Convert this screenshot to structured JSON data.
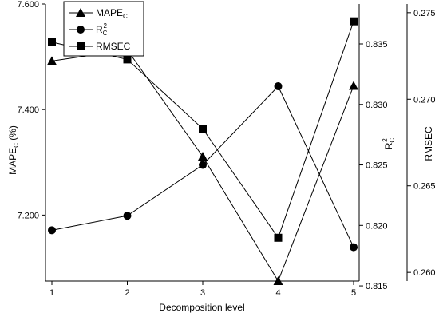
{
  "chart_data": {
    "type": "line",
    "xlabel": "Decomposition level",
    "x": [
      1,
      2,
      3,
      4,
      5
    ],
    "xticks": [
      "1",
      "2",
      "3",
      "4",
      "5"
    ],
    "axes": {
      "left": {
        "label": "MAPE",
        "label_sub": "C",
        "label_suffix": " (%)",
        "ylim": [
          7.075,
          7.6
        ],
        "ticks": [
          7.2,
          7.4,
          7.6
        ],
        "tick_labels": [
          "7.200",
          "7.400",
          "7.600"
        ]
      },
      "right1": {
        "label": "R",
        "label_sup": "2",
        "label_sub": "C",
        "ylim": [
          0.8154,
          0.8383
        ],
        "ticks": [
          0.815,
          0.82,
          0.825,
          0.83,
          0.835
        ],
        "tick_labels": [
          "0.815",
          "0.820",
          "0.825",
          "0.830",
          "0.835"
        ]
      },
      "right2": {
        "label": "RMSEC",
        "ylim": [
          0.2595,
          0.2755
        ],
        "ticks": [
          0.26,
          0.265,
          0.27,
          0.275
        ],
        "tick_labels": [
          "0.260",
          "0.265",
          "0.270",
          "0.275"
        ]
      }
    },
    "series": [
      {
        "name": "MAPE",
        "name_sub": "C",
        "axis": "left",
        "marker": "triangle",
        "values": [
          7.492,
          7.513,
          7.311,
          7.075,
          7.445
        ]
      },
      {
        "name": "R",
        "name_sup": "2",
        "name_sub": "C",
        "axis": "right1",
        "marker": "circle",
        "values": [
          0.8196,
          0.8208,
          0.825,
          0.8315,
          0.8182
        ]
      },
      {
        "name": "RMSEC",
        "axis": "right2",
        "marker": "square",
        "values": [
          0.2733,
          0.2723,
          0.2683,
          0.262,
          0.2745
        ]
      }
    ],
    "legend_position": "top-left"
  }
}
